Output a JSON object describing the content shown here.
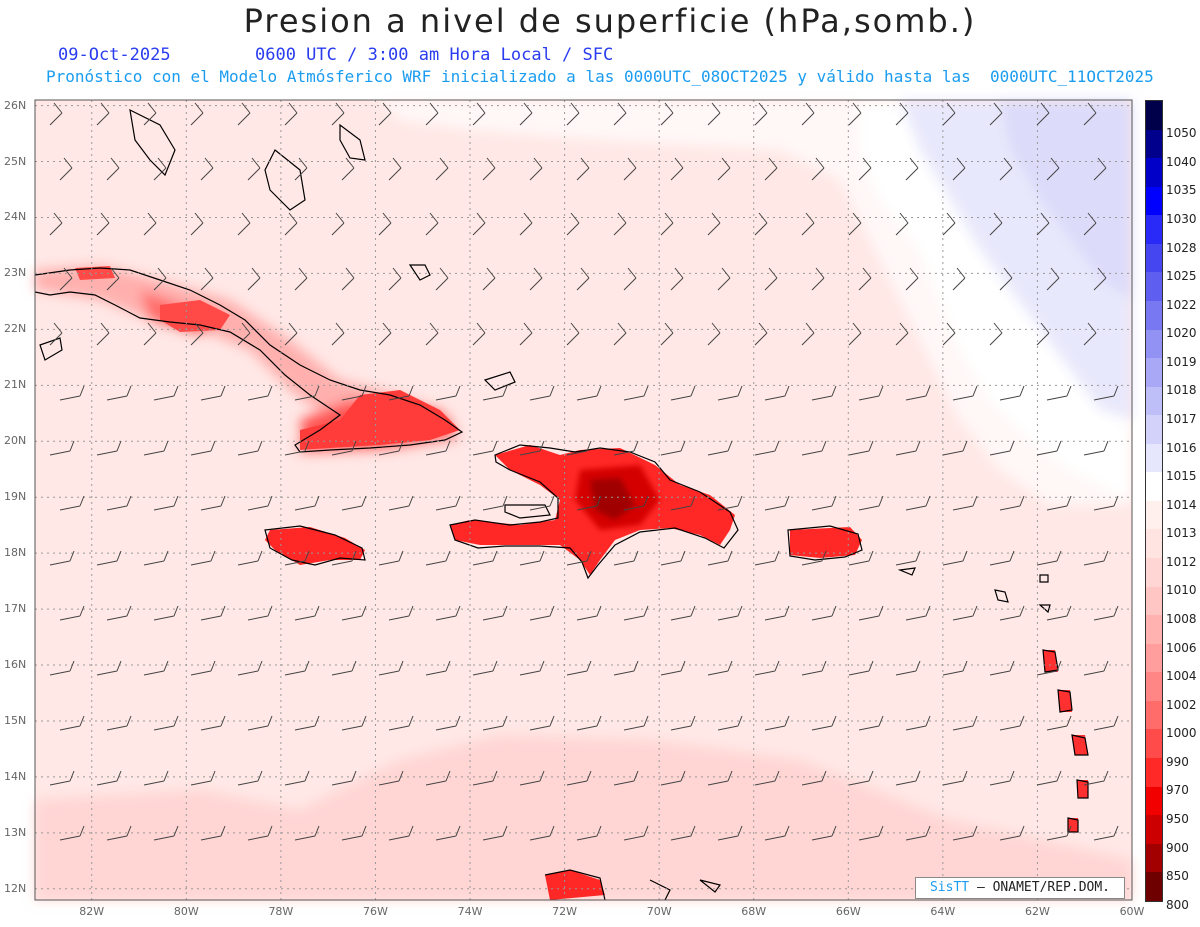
{
  "title": "Presion a nivel de superficie (hPa,somb.)",
  "date": "09-Oct-2025",
  "valid_time": "0600 UTC / 3:00 am Hora Local / SFC",
  "forecast_note": "Pronóstico con el Modelo Atmósferico WRF inicializado a las 0000UTC_08OCT2025 y válido hasta las  0000UTC_11OCT2025",
  "lat_labels": [
    "26N",
    "25N",
    "24N",
    "23N",
    "22N",
    "21N",
    "20N",
    "19N",
    "18N",
    "17N",
    "16N",
    "15N",
    "14N",
    "13N",
    "12N"
  ],
  "lon_labels": [
    "82W",
    "80W",
    "78W",
    "76W",
    "74W",
    "72W",
    "70W",
    "68W",
    "66W",
    "64W",
    "62W",
    "60W"
  ],
  "colorbar": {
    "levels": [
      "1050",
      "1040",
      "1035",
      "1030",
      "1028",
      "1025",
      "1022",
      "1020",
      "1019",
      "1018",
      "1017",
      "1016",
      "1015",
      "1014",
      "1013",
      "1012",
      "1010",
      "1008",
      "1006",
      "1004",
      "1002",
      "1000",
      "990",
      "970",
      "950",
      "900",
      "850",
      "800"
    ],
    "colors": [
      "#00004a",
      "#00008c",
      "#0000c8",
      "#0000ff",
      "#2a2af8",
      "#4646f0",
      "#5e5ef0",
      "#7878f2",
      "#9292f4",
      "#a8a8f6",
      "#bebef8",
      "#d2d2fa",
      "#e6e6fc",
      "#ffffff",
      "#fff0ee",
      "#ffe4e2",
      "#ffd6d4",
      "#ffc6c4",
      "#ffb2b0",
      "#ff9e9c",
      "#ff8684",
      "#ff6c6a",
      "#ff4c4a",
      "#ff2a28",
      "#f20000",
      "#cc0000",
      "#a20000",
      "#6e0000"
    ]
  },
  "credit": {
    "brand": "SisTT",
    "org": "– ONAMET/REP.DOM."
  }
}
